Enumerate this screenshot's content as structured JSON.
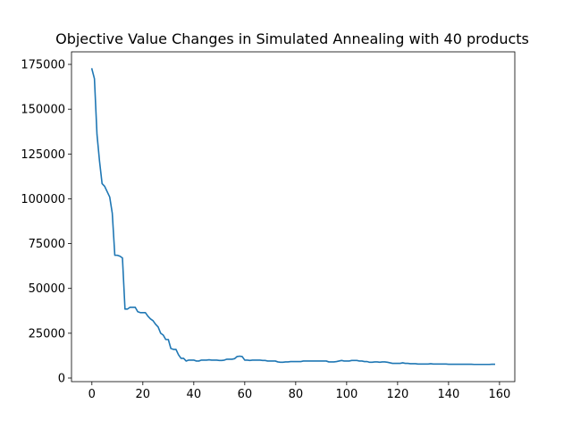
{
  "chart_data": {
    "type": "line",
    "title": "Objective Value Changes in Simulated Annealing with 40 products",
    "xlabel": "",
    "ylabel": "",
    "xlim": [
      -8,
      166
    ],
    "ylim": [
      -2000,
      182000
    ],
    "xticks": [
      0,
      20,
      40,
      60,
      80,
      100,
      120,
      140,
      160
    ],
    "yticks": [
      0,
      25000,
      50000,
      75000,
      100000,
      125000,
      150000,
      175000
    ],
    "grid": false,
    "series_color": "#1f77b4",
    "series": [
      {
        "x": [
          0,
          1,
          2,
          3,
          4,
          5,
          6,
          7,
          8,
          9,
          10,
          11,
          12,
          13,
          14,
          15,
          16,
          17,
          18,
          19,
          20,
          21,
          22,
          23,
          24,
          25,
          26,
          27,
          28,
          29,
          30,
          31,
          32,
          33,
          34,
          35,
          36,
          37,
          38,
          39,
          40,
          41,
          42,
          43,
          44,
          45,
          46,
          47,
          48,
          49,
          50,
          51,
          52,
          53,
          54,
          55,
          56,
          57,
          58,
          59,
          60,
          61,
          62,
          63,
          64,
          65,
          66,
          67,
          68,
          69,
          70,
          71,
          72,
          73,
          74,
          75,
          76,
          77,
          78,
          79,
          80,
          81,
          82,
          83,
          84,
          85,
          86,
          87,
          88,
          89,
          90,
          91,
          92,
          93,
          94,
          95,
          96,
          97,
          98,
          99,
          100,
          101,
          102,
          103,
          104,
          105,
          106,
          107,
          108,
          109,
          110,
          111,
          112,
          113,
          114,
          115,
          116,
          117,
          118,
          119,
          120,
          121,
          122,
          123,
          124,
          125,
          126,
          127,
          128,
          129,
          130,
          131,
          132,
          133,
          134,
          135,
          136,
          137,
          138,
          139,
          140,
          141,
          142,
          143,
          144,
          145,
          146,
          147,
          148,
          149,
          150,
          151,
          152,
          153,
          154,
          155,
          156,
          157,
          158
        ],
        "values": [
          172500,
          167000,
          136000,
          121000,
          108500,
          107000,
          104000,
          101000,
          92000,
          68500,
          68500,
          68000,
          67000,
          38500,
          38500,
          39500,
          39500,
          39500,
          37000,
          36500,
          36500,
          36500,
          34500,
          33000,
          32000,
          30000,
          28500,
          25000,
          24000,
          21500,
          21500,
          16500,
          16000,
          16000,
          13000,
          11000,
          11000,
          9500,
          10000,
          10000,
          10000,
          9500,
          9500,
          10000,
          10000,
          10000,
          10200,
          10000,
          10000,
          10000,
          9800,
          9800,
          10000,
          10500,
          10500,
          10500,
          10800,
          12000,
          12200,
          12000,
          10000,
          10000,
          9800,
          10000,
          10000,
          10000,
          10000,
          9800,
          9800,
          9500,
          9500,
          9500,
          9500,
          9000,
          8800,
          8800,
          9000,
          9000,
          9200,
          9200,
          9200,
          9200,
          9200,
          9500,
          9500,
          9500,
          9500,
          9500,
          9500,
          9500,
          9500,
          9500,
          9500,
          9000,
          9000,
          9000,
          9200,
          9500,
          9800,
          9500,
          9500,
          9500,
          9800,
          9800,
          9800,
          9500,
          9500,
          9200,
          9200,
          8800,
          8800,
          9000,
          9000,
          8800,
          9000,
          9000,
          8800,
          8500,
          8200,
          8200,
          8200,
          8200,
          8500,
          8200,
          8200,
          8000,
          8000,
          8000,
          7800,
          7800,
          7800,
          7800,
          7800,
          8000,
          7800,
          7800,
          7800,
          7800,
          7800,
          7800,
          7700,
          7700,
          7700,
          7700,
          7700,
          7700,
          7700,
          7700,
          7700,
          7700,
          7600,
          7600,
          7600,
          7600,
          7600,
          7600,
          7600,
          7700,
          7700
        ]
      }
    ]
  }
}
